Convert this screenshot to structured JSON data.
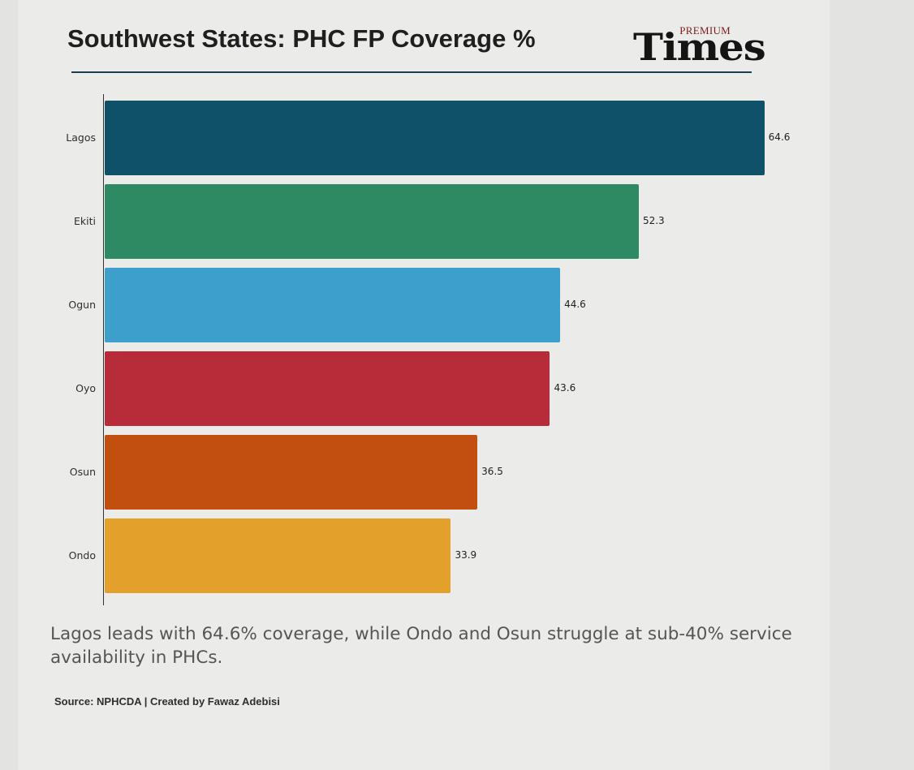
{
  "header": {
    "title": "Southwest States: PHC FP Coverage %",
    "logo_small": "PREMIUM",
    "logo_word": "Times"
  },
  "chart_data": {
    "type": "bar",
    "orientation": "horizontal",
    "title": "Southwest States: PHC FP Coverage %",
    "categories": [
      "Lagos",
      "Ekiti",
      "Ogun",
      "Oyo",
      "Osun",
      "Ondo"
    ],
    "values": [
      64.6,
      52.3,
      44.6,
      43.6,
      36.5,
      33.9
    ],
    "value_labels": [
      "64.6",
      "52.3",
      "44.6",
      "43.6",
      "36.5",
      "33.9"
    ],
    "colors": [
      "#0f5168",
      "#2e8a62",
      "#3c9fcc",
      "#b82c3a",
      "#c24f10",
      "#e3a02a"
    ],
    "xlim": [
      0,
      65.5
    ],
    "xlabel": "",
    "ylabel": "",
    "grid": false,
    "legend": "none"
  },
  "footer": {
    "caption": "Lagos leads with 64.6% coverage, while Ondo and Osun struggle at sub-40% service availability in PHCs.",
    "source": "Source: NPHCDA | Created by Fawaz Adebisi"
  }
}
